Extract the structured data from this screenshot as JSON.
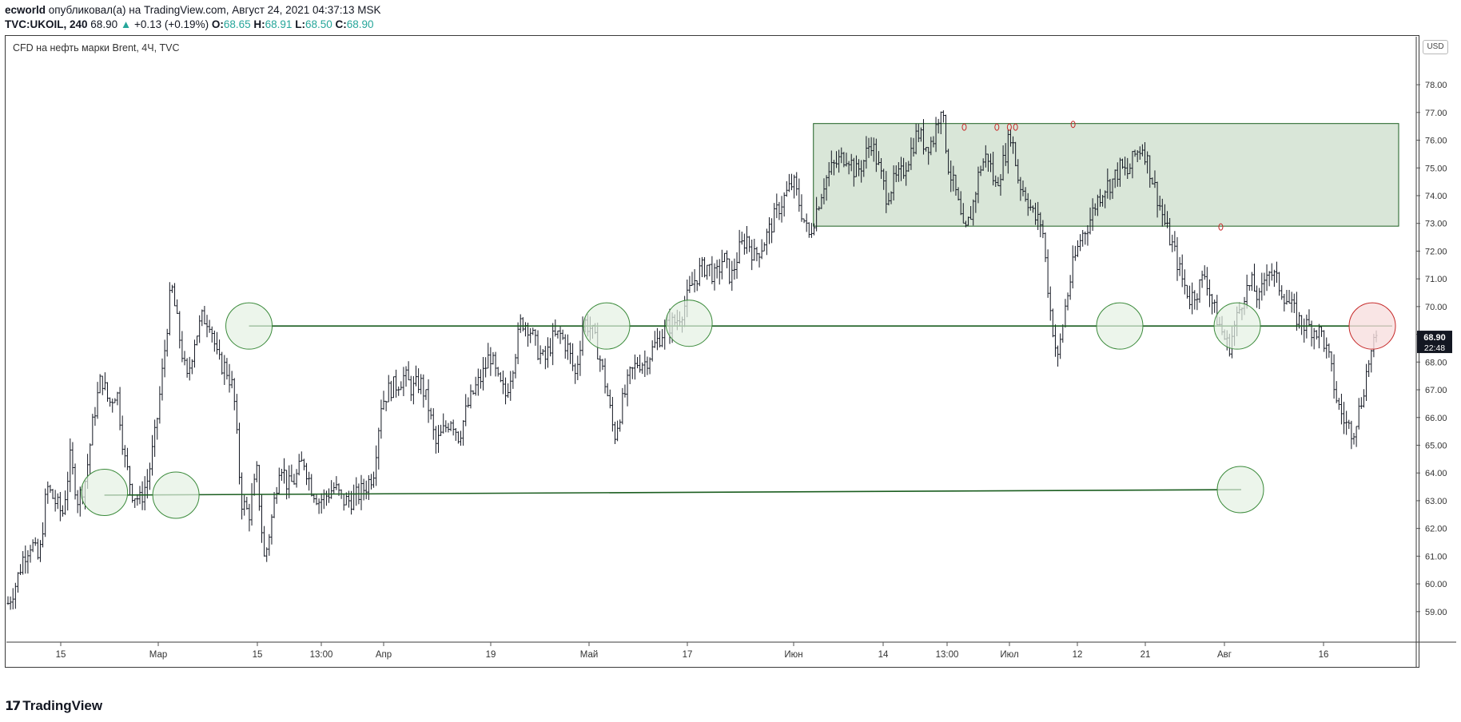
{
  "header": {
    "author": "ecworld",
    "published_text": "опубликовал(а) на TradingView.com, Август 24, 2021 04:37:13 MSK",
    "symbol": "TVC:UKOIL, 240",
    "last": "68.90",
    "change": "+0.13 (+0.19%)",
    "open_label": "O:",
    "open": "68.65",
    "high_label": "H:",
    "high": "68.91",
    "low_label": "L:",
    "low": "68.50",
    "close_label": "C:",
    "close": "68.90"
  },
  "symbol_title": "CFD на нефть марки Brent, 4Ч, TVC",
  "currency_badge": "USD",
  "price_label": "68.90",
  "countdown_label": "22:48",
  "footer_logo": "TradingView",
  "colors": {
    "candle": "#131722",
    "zone_fill": "#d9e6d8",
    "zone_border": "#1b5e20",
    "level_line": "#1b5e20",
    "circle_green_fill": "#e4f1e3",
    "circle_green_stroke": "#3a8a3a",
    "circle_red_fill": "#f7dede",
    "circle_red_stroke": "#c62828",
    "accent_teal": "#26a69a",
    "price_badge": "#131722"
  },
  "chart_data": {
    "type": "ohlc",
    "y_ticks": [
      "59.00",
      "60.00",
      "61.00",
      "62.00",
      "63.00",
      "64.00",
      "65.00",
      "66.00",
      "67.00",
      "68.00",
      "69.00",
      "70.00",
      "71.00",
      "72.00",
      "73.00",
      "74.00",
      "75.00",
      "76.00",
      "77.00",
      "78.00"
    ],
    "x_ticks": [
      "15",
      "Мар",
      "15",
      "13:00",
      "Апр",
      "19",
      "Май",
      "17",
      "Июн",
      "14",
      "13:00",
      "Июл",
      "12",
      "21",
      "Авг",
      "16"
    ],
    "ylim": [
      57.9,
      79.5
    ],
    "series": [
      {
        "values": [
          [
            0,
            59.3
          ],
          [
            0.5,
            60.0
          ],
          [
            1,
            61.0
          ],
          [
            1.5,
            61.5
          ],
          [
            2,
            60.8
          ],
          [
            2.5,
            63.5
          ],
          [
            3,
            63.0
          ],
          [
            3.5,
            62.5
          ],
          [
            4,
            64.5
          ],
          [
            4.5,
            63.0
          ],
          [
            5,
            63.8
          ],
          [
            5.5,
            66.0
          ],
          [
            6,
            67.5
          ],
          [
            6.5,
            66.5
          ],
          [
            7,
            67.0
          ],
          [
            7.5,
            64.5
          ],
          [
            8,
            63.3
          ],
          [
            8.5,
            63.0
          ],
          [
            9,
            63.8
          ],
          [
            9.5,
            65.5
          ],
          [
            10,
            68.0
          ],
          [
            10.5,
            70.8
          ],
          [
            11,
            69.0
          ],
          [
            11.5,
            67.3
          ],
          [
            12,
            68.8
          ],
          [
            12.5,
            69.6
          ],
          [
            13,
            69.5
          ],
          [
            13.5,
            68.0
          ],
          [
            14,
            67.8
          ],
          [
            14.5,
            67.0
          ],
          [
            15,
            63.0
          ],
          [
            15.5,
            62.5
          ],
          [
            16,
            64.0
          ],
          [
            16.5,
            60.8
          ],
          [
            17,
            62.5
          ],
          [
            17.5,
            64.5
          ],
          [
            18,
            63.5
          ],
          [
            18.5,
            63.8
          ],
          [
            19,
            64.5
          ],
          [
            19.5,
            63.5
          ],
          [
            20,
            63.0
          ],
          [
            20.5,
            63.2
          ],
          [
            21,
            63.5
          ],
          [
            21.5,
            63.0
          ],
          [
            22,
            63.0
          ],
          [
            22.5,
            63.2
          ],
          [
            23,
            63.5
          ],
          [
            23.5,
            64.0
          ],
          [
            24,
            66.5
          ],
          [
            24.5,
            67.0
          ],
          [
            25,
            67.2
          ],
          [
            25.5,
            67.5
          ],
          [
            26,
            67.0
          ],
          [
            26.5,
            67.3
          ],
          [
            27,
            66.5
          ],
          [
            27.5,
            65.0
          ],
          [
            28,
            65.5
          ],
          [
            28.5,
            66.0
          ],
          [
            29,
            65.3
          ],
          [
            29.5,
            66.3
          ],
          [
            30,
            67.0
          ],
          [
            30.5,
            67.5
          ],
          [
            31,
            68.3
          ],
          [
            31.5,
            67.3
          ],
          [
            32,
            66.8
          ],
          [
            32.5,
            68.0
          ],
          [
            33,
            69.5
          ],
          [
            33.5,
            69.3
          ],
          [
            34,
            68.5
          ],
          [
            34.5,
            68.0
          ],
          [
            35,
            68.8
          ],
          [
            35.5,
            69.0
          ],
          [
            36,
            68.5
          ],
          [
            36.5,
            67.5
          ],
          [
            37,
            69.5
          ],
          [
            37.5,
            69.2
          ],
          [
            38,
            68.3
          ],
          [
            38.5,
            67.0
          ],
          [
            39,
            65.3
          ],
          [
            39.5,
            66.5
          ],
          [
            40,
            67.5
          ],
          [
            40.5,
            68.0
          ],
          [
            41,
            68.0
          ],
          [
            41.5,
            68.5
          ],
          [
            42,
            69.0
          ],
          [
            42.5,
            69.3
          ],
          [
            43,
            69.5
          ],
          [
            43.5,
            70.0
          ],
          [
            44,
            70.8
          ],
          [
            44.5,
            71.3
          ],
          [
            45,
            71.5
          ],
          [
            45.5,
            71.0
          ],
          [
            46,
            71.8
          ],
          [
            46.5,
            71.0
          ],
          [
            47,
            72.0
          ],
          [
            47.5,
            72.5
          ],
          [
            48,
            71.8
          ],
          [
            48.5,
            72.2
          ],
          [
            49,
            72.8
          ],
          [
            49.5,
            73.5
          ],
          [
            50,
            74.0
          ],
          [
            50.5,
            74.5
          ],
          [
            51,
            73.5
          ],
          [
            51.5,
            72.5
          ],
          [
            52,
            73.5
          ],
          [
            52.5,
            74.5
          ],
          [
            53,
            75.0
          ],
          [
            53.5,
            75.3
          ],
          [
            54,
            75.5
          ],
          [
            54.5,
            74.8
          ],
          [
            55,
            75.2
          ],
          [
            55.5,
            76.0
          ],
          [
            56,
            75.0
          ],
          [
            56.5,
            74.0
          ],
          [
            57,
            74.5
          ],
          [
            57.5,
            74.8
          ],
          [
            58,
            75.5
          ],
          [
            58.5,
            76.3
          ],
          [
            59,
            75.8
          ],
          [
            59.5,
            76.0
          ],
          [
            60,
            77.3
          ],
          [
            60.5,
            75.0
          ],
          [
            61,
            74.0
          ],
          [
            61.5,
            72.5
          ],
          [
            62,
            73.5
          ],
          [
            62.5,
            75.0
          ],
          [
            63,
            75.5
          ],
          [
            63.5,
            74.3
          ],
          [
            64,
            75.2
          ],
          [
            64.5,
            76.3
          ],
          [
            65,
            74.5
          ],
          [
            65.5,
            74.0
          ],
          [
            66,
            73.2
          ],
          [
            66.5,
            73.0
          ],
          [
            67,
            70.0
          ],
          [
            67.5,
            68.0
          ],
          [
            68,
            70.0
          ],
          [
            68.5,
            71.5
          ],
          [
            69,
            72.5
          ],
          [
            69.5,
            73.0
          ],
          [
            70,
            73.8
          ],
          [
            70.5,
            74.3
          ],
          [
            71,
            74.5
          ],
          [
            71.5,
            75.0
          ],
          [
            72,
            74.8
          ],
          [
            72.5,
            75.5
          ],
          [
            73,
            75.8
          ],
          [
            73.5,
            74.8
          ],
          [
            74,
            73.8
          ],
          [
            74.5,
            72.8
          ],
          [
            75,
            72.0
          ],
          [
            75.5,
            71.0
          ],
          [
            76,
            70.3
          ],
          [
            76.5,
            70.6
          ],
          [
            77,
            71.2
          ],
          [
            77.5,
            70.0
          ],
          [
            78,
            69.2
          ],
          [
            78.5,
            68.5
          ],
          [
            79,
            69.5
          ],
          [
            79.5,
            70.5
          ],
          [
            80,
            70.8
          ],
          [
            80.5,
            70.2
          ],
          [
            81,
            71.5
          ],
          [
            81.5,
            71.0
          ],
          [
            82,
            70.5
          ],
          [
            82.5,
            70.0
          ],
          [
            83,
            69.5
          ],
          [
            83.5,
            69.3
          ],
          [
            84,
            69.2
          ],
          [
            84.5,
            69.0
          ],
          [
            85,
            68.0
          ],
          [
            85.5,
            66.5
          ],
          [
            86,
            65.8
          ],
          [
            86.5,
            65.5
          ],
          [
            87,
            66.5
          ],
          [
            87.5,
            68.0
          ],
          [
            88,
            68.8
          ]
        ]
      }
    ],
    "annotations": {
      "zone": {
        "y_top": 76.6,
        "y_bottom": 72.9
      },
      "levels": [
        {
          "y": 69.3
        },
        {
          "y": 63.3
        }
      ],
      "circles_green": [
        [
          6.2,
          63.3
        ],
        [
          10.8,
          63.2
        ],
        [
          15.5,
          69.3
        ],
        [
          38.5,
          69.3
        ],
        [
          43.8,
          69.4
        ],
        [
          71.5,
          69.3
        ],
        [
          77.5,
          69.3
        ],
        [
          77.5,
          63.4
        ]
      ],
      "circles_red": [
        [
          86.5,
          69.3
        ]
      ],
      "markers": [
        [
          61.5,
          76.5
        ],
        [
          63.6,
          76.5
        ],
        [
          64.4,
          76.5
        ],
        [
          64.8,
          76.5
        ],
        [
          68.5,
          76.6
        ],
        [
          78,
          72.9
        ]
      ]
    }
  }
}
